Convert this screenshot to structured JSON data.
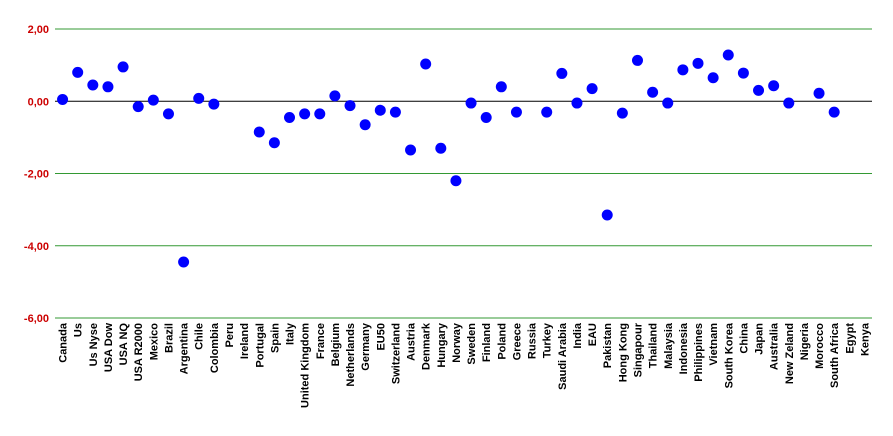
{
  "chart_data": {
    "type": "scatter",
    "categories": [
      "Canada",
      "Us",
      "Us Nyse",
      "USA Dow",
      "USA NQ",
      "USA R2000",
      "Mexico",
      "Brazil",
      "Argentina",
      "Chile",
      "Colombia",
      "Peru",
      "Ireland",
      "Portugal",
      "Spain",
      "Italy",
      "United Kingdom",
      "France",
      "Belgium",
      "Netherlands",
      "Germany",
      "EU50",
      "Switzerland",
      "Austria",
      "Denmark",
      "Hungary",
      "Norway",
      "Sweden",
      "Finland",
      "Poland",
      "Greece",
      "Russia",
      "Turkey",
      "Saudi Arabia",
      "India",
      "EAU",
      "Pakistan",
      "Hong Kong",
      "Singapour",
      "Thailand",
      "Malaysia",
      "Indonesia",
      "Philippines",
      "Vietnam",
      "South Korea",
      "China",
      "Japan",
      "Australia",
      "New Zeland",
      "Nigeria",
      "Morocco",
      "South Africa",
      "Egypt",
      "Kenya"
    ],
    "series": [
      {
        "values": [
          0.05,
          0.8,
          0.45,
          0.4,
          0.95,
          -0.15,
          0.03,
          -0.35,
          -4.45,
          0.08,
          -0.08,
          null,
          null,
          -0.85,
          -1.15,
          -0.45,
          -0.35,
          -0.35,
          0.15,
          -0.12,
          -0.65,
          -0.25,
          -0.3,
          -1.35,
          1.03,
          -1.3,
          -2.2,
          -0.05,
          -0.45,
          0.4,
          -0.3,
          null,
          -0.3,
          0.77,
          -0.05,
          0.35,
          -3.15,
          -0.33,
          1.13,
          0.25,
          -0.05,
          0.87,
          1.05,
          0.65,
          1.28,
          0.78,
          0.3,
          0.43,
          -0.05,
          null,
          0.22,
          -0.3,
          null,
          null
        ],
        "color": "#0000ff"
      }
    ],
    "y_ticks": [
      "2,00",
      "0,00",
      "-2,00",
      "-4,00",
      "-6,00"
    ],
    "ylim": [
      -6,
      2
    ],
    "grid": true,
    "grid_color": "#339933",
    "zero_line_color": "#000000",
    "tick_label_color": "#cc0000"
  }
}
